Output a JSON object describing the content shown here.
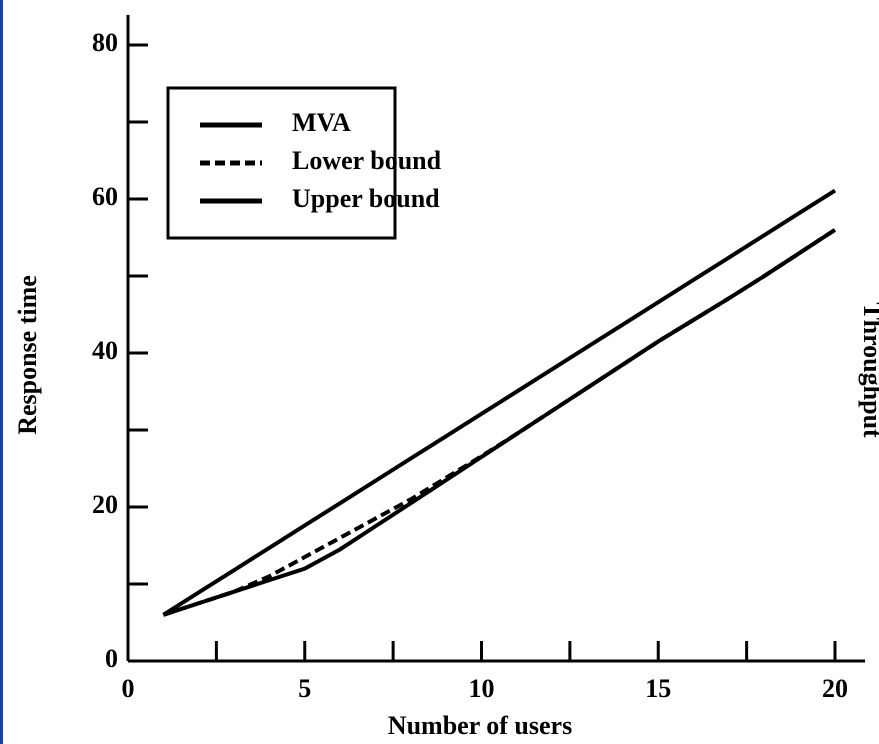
{
  "chart_data": {
    "type": "line",
    "x_label": "Number of users",
    "y_label": "Response time",
    "annotation": "Throughput",
    "x": [
      1,
      2,
      3,
      4,
      5,
      6,
      7,
      8,
      9,
      10,
      11,
      12,
      13,
      14,
      15,
      16,
      17,
      18,
      19,
      20
    ],
    "series": [
      {
        "name": "MVA",
        "color": "#000000",
        "style": "solid",
        "values": [
          6,
          7.5,
          9,
          10.5,
          12,
          14.5,
          17.5,
          20.5,
          23.5,
          26.5,
          29.5,
          32.5,
          35.5,
          38.5,
          41.5,
          44.3,
          47.1,
          50,
          53,
          56
        ]
      },
      {
        "name": "Lower bound",
        "color": "#000000",
        "style": "dashed",
        "values": [
          6,
          7.5,
          9,
          11,
          13.5,
          16,
          18.5,
          21,
          23.8,
          26.6,
          29.5,
          32.5,
          35.5,
          38.5,
          41.5,
          44.3,
          47.1,
          50,
          53,
          56
        ]
      },
      {
        "name": "Upper bound",
        "color": "#000000",
        "style": "solid",
        "values": [
          6,
          8.9,
          11.8,
          14.7,
          17.6,
          20.5,
          23.4,
          26.3,
          29.2,
          32.1,
          35,
          37.9,
          40.8,
          43.7,
          46.6,
          49.5,
          52.4,
          55.3,
          58.2,
          61.1
        ]
      }
    ],
    "xlim": [
      0,
      20
    ],
    "xticks": [
      0,
      5,
      10,
      15,
      20
    ],
    "xminorticks": [
      2.5,
      7.5,
      12.5,
      17.5
    ],
    "ylim": [
      0,
      80
    ],
    "yticks": [
      0,
      20,
      40,
      60,
      80
    ],
    "yminorticks": [
      10,
      30,
      50,
      70
    ],
    "legend": "upper-left"
  }
}
